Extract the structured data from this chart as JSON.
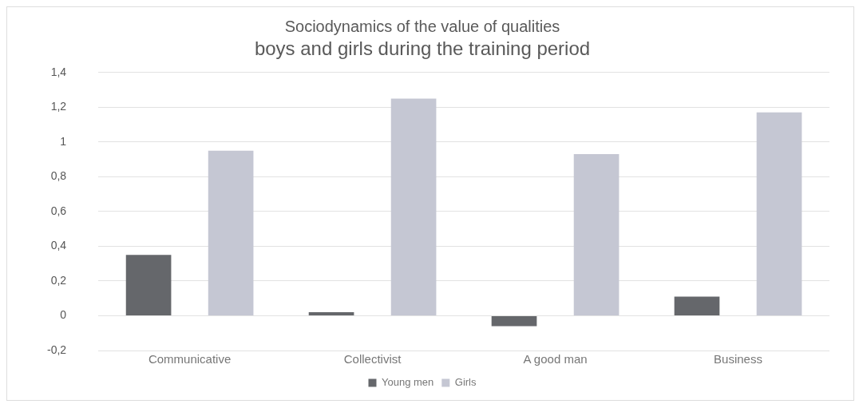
{
  "chart_data": {
    "type": "bar",
    "title": "Sociodynamics of the value of qualities",
    "subtitle": "boys and girls during the training period",
    "categories": [
      "Communicative",
      "Collectivist",
      "A good man",
      "Business"
    ],
    "series": [
      {
        "name": "Young men",
        "color": "#65676b",
        "values": [
          0.35,
          0.02,
          -0.06,
          0.11
        ]
      },
      {
        "name": "Girls",
        "color": "#c5c7d3",
        "values": [
          0.95,
          1.25,
          0.93,
          1.17
        ]
      }
    ],
    "ylim": [
      -0.2,
      1.4
    ],
    "yticks": [
      {
        "value": -0.2,
        "label": "-0,2"
      },
      0,
      {
        "value": 0.2,
        "label": "0,2"
      },
      {
        "value": 0.4,
        "label": "0,4"
      },
      {
        "value": 0.6,
        "label": "0,6"
      },
      {
        "value": 0.8,
        "label": "0,8"
      },
      1,
      {
        "value": 1.2,
        "label": "1,2"
      },
      {
        "value": 1.4,
        "label": "1,4"
      }
    ],
    "grid": "y",
    "legend": "bottom"
  }
}
